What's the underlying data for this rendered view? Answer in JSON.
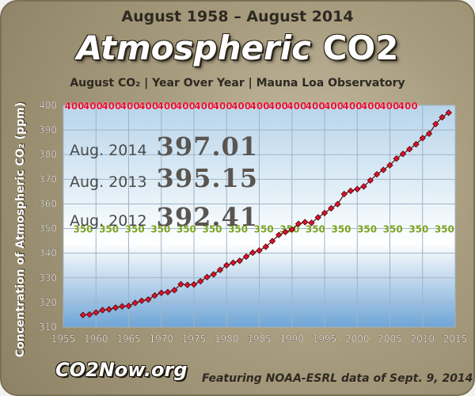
{
  "header": {
    "period": "August 1958 – August 2014",
    "title_text": "Atmospheric",
    "title_formula": "CO2",
    "subline": "August CO₂  | Year Over Year | Mauna Loa Observatory"
  },
  "footer": {
    "brand": "CO2Now.org",
    "source": "Featuring NOAA-ESRL data of Sept. 9, 2014"
  },
  "readings": [
    {
      "label": "Aug. 2014",
      "value": "397.01"
    },
    {
      "label": "Aug. 2013",
      "value": "395.15"
    },
    {
      "label": "Aug. 2012",
      "value": "392.41"
    }
  ],
  "chart_data": {
    "type": "line",
    "title": "Atmospheric CO2",
    "ylabel": "Concentration of Atmospheric CO₂ (ppm)",
    "xlabel": "",
    "xlim": [
      1955,
      2015
    ],
    "ylim": [
      310,
      400
    ],
    "xticks": [
      1955,
      1960,
      1965,
      1970,
      1975,
      1980,
      1985,
      1990,
      1995,
      2000,
      2005,
      2010,
      2015
    ],
    "yticks": [
      310,
      320,
      330,
      340,
      350,
      360,
      370,
      380,
      390,
      400
    ],
    "grid": true,
    "series": [
      {
        "x": [
          1958,
          1959,
          1960,
          1961,
          1962,
          1963,
          1964,
          1965,
          1966,
          1967,
          1968,
          1969,
          1970,
          1971,
          1972,
          1973,
          1974,
          1975,
          1976,
          1977,
          1978,
          1979,
          1980,
          1981,
          1982,
          1983,
          1984,
          1985,
          1986,
          1987,
          1988,
          1989,
          1990,
          1991,
          1992,
          1993,
          1994,
          1995,
          1996,
          1997,
          1998,
          1999,
          2000,
          2001,
          2002,
          2003,
          2004,
          2005,
          2006,
          2007,
          2008,
          2009,
          2010,
          2011,
          2012,
          2013,
          2014
        ],
        "values": [
          314.9,
          315.1,
          315.9,
          316.9,
          317.2,
          317.9,
          318.4,
          318.6,
          319.8,
          320.7,
          321.2,
          322.8,
          323.9,
          324.2,
          325.0,
          327.4,
          327.1,
          327.3,
          328.6,
          330.3,
          331.4,
          333.2,
          335.1,
          336.1,
          336.9,
          338.6,
          340.2,
          341.1,
          342.6,
          344.9,
          347.4,
          348.6,
          349.6,
          351.9,
          352.6,
          352.3,
          354.5,
          356.3,
          358.2,
          359.9,
          364.0,
          365.3,
          366.0,
          367.1,
          369.5,
          372.0,
          373.8,
          375.7,
          378.4,
          380.3,
          382.2,
          384.2,
          386.7,
          388.5,
          392.41,
          395.15,
          397.01
        ]
      }
    ],
    "reference_lines": [
      {
        "value": 400,
        "label": "400",
        "color": "#e0102c"
      },
      {
        "value": 350,
        "label": "350",
        "color": "#7aa321"
      }
    ]
  }
}
